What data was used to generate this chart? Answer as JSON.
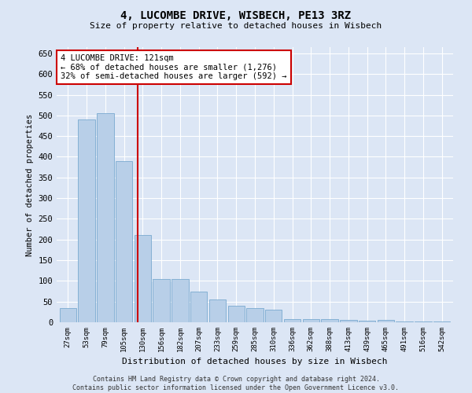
{
  "title": "4, LUCOMBE DRIVE, WISBECH, PE13 3RZ",
  "subtitle": "Size of property relative to detached houses in Wisbech",
  "xlabel": "Distribution of detached houses by size in Wisbech",
  "ylabel": "Number of detached properties",
  "categories": [
    "27sqm",
    "53sqm",
    "79sqm",
    "105sqm",
    "130sqm",
    "156sqm",
    "182sqm",
    "207sqm",
    "233sqm",
    "259sqm",
    "285sqm",
    "310sqm",
    "336sqm",
    "362sqm",
    "388sqm",
    "413sqm",
    "439sqm",
    "465sqm",
    "491sqm",
    "516sqm",
    "542sqm"
  ],
  "values": [
    35,
    490,
    505,
    390,
    210,
    105,
    105,
    75,
    55,
    40,
    35,
    30,
    8,
    8,
    8,
    5,
    3,
    5,
    2,
    2,
    2
  ],
  "bar_color": "#b8cfe8",
  "bar_edge_color": "#7aaad0",
  "background_color": "#dce6f5",
  "grid_color": "#ffffff",
  "vline_x": 3.72,
  "vline_color": "#cc0000",
  "annotation_text": "4 LUCOMBE DRIVE: 121sqm\n← 68% of detached houses are smaller (1,276)\n32% of semi-detached houses are larger (592) →",
  "annotation_box_color": "#ffffff",
  "annotation_box_edge": "#cc0000",
  "footer_line1": "Contains HM Land Registry data © Crown copyright and database right 2024.",
  "footer_line2": "Contains public sector information licensed under the Open Government Licence v3.0.",
  "ylim": [
    0,
    665
  ],
  "yticks": [
    0,
    50,
    100,
    150,
    200,
    250,
    300,
    350,
    400,
    450,
    500,
    550,
    600,
    650
  ]
}
